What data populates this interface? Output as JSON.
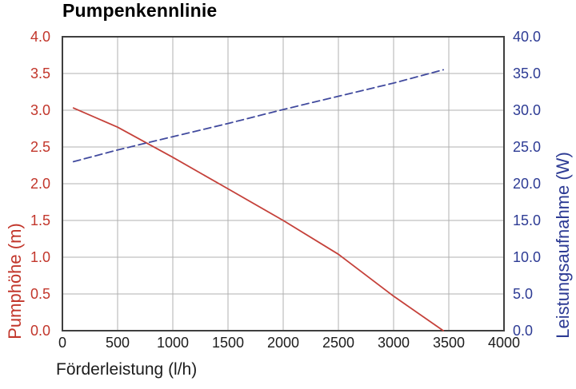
{
  "title": "Pumpenkennlinie",
  "colors": {
    "head_line": "#c5413a",
    "head_text": "#c2362b",
    "power_line": "#414a9e",
    "power_text": "#2d3b94",
    "grid": "#b0b0b0",
    "border": "#3f3f3f",
    "text": "#1c1c1c"
  },
  "chart_data": {
    "type": "line",
    "title": "Pumpenkennlinie",
    "xlabel": "Förderleistung (l/h)",
    "ylabel_left": "Pumphöhe (m)",
    "ylabel_right": "Leistungsaufnahme (W)",
    "xlim": [
      0,
      4000
    ],
    "ylim_left": [
      0,
      4
    ],
    "ylim_right": [
      0,
      40
    ],
    "x_tick_values": [
      0,
      500,
      1000,
      1500,
      2000,
      2500,
      3000,
      3500,
      4000
    ],
    "x_tick_labels": [
      "0",
      "500",
      "1000",
      "1500",
      "2000",
      "2500",
      "3000",
      "3500",
      "4000"
    ],
    "y_tick_values_left": [
      4.0,
      3.5,
      3.0,
      2.5,
      2.0,
      1.5,
      1.0,
      0.5,
      0.0
    ],
    "y_tick_labels_left": [
      "4.0",
      "3.5",
      "3.0",
      "2.5",
      "2.0",
      "1.5",
      "1.0",
      "0.5",
      "0.0"
    ],
    "y_tick_values_right": [
      40.0,
      35.0,
      30.0,
      25.0,
      20.0,
      15.0,
      10.0,
      5.0,
      0.0
    ],
    "y_tick_labels_right": [
      "40.0",
      "35.0",
      "30.0",
      "25.0",
      "20.0",
      "15.0",
      "10.0",
      "5.0",
      "0.0"
    ],
    "grid": true,
    "legend": "none",
    "series": [
      {
        "name": "Pumphöhe",
        "axis": "left",
        "style": "solid",
        "color": "#c5413a",
        "x": [
          100,
          500,
          1000,
          1500,
          2000,
          2500,
          3000,
          3450
        ],
        "values": [
          3.03,
          2.77,
          2.36,
          1.93,
          1.5,
          1.04,
          0.47,
          0.0
        ]
      },
      {
        "name": "Leistungsaufnahme",
        "axis": "right",
        "style": "dashed",
        "color": "#414a9e",
        "x": [
          100,
          500,
          1000,
          1500,
          2000,
          2500,
          3000,
          3450
        ],
        "values": [
          23.0,
          24.6,
          26.4,
          28.2,
          30.1,
          31.9,
          33.7,
          35.5
        ]
      }
    ]
  }
}
